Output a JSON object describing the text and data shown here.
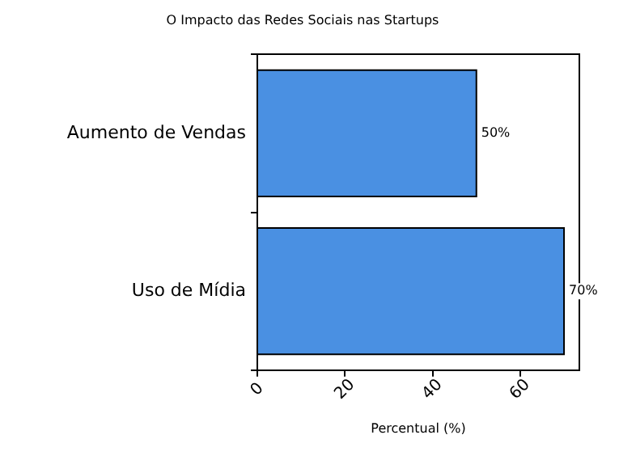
{
  "chart_data": {
    "type": "bar",
    "orientation": "horizontal",
    "title": "O Impacto das Redes Sociais nas Startups",
    "xlabel": "Percentual (%)",
    "categories": [
      "Aumento de Vendas",
      "Uso de Mídia"
    ],
    "values": [
      50,
      70
    ],
    "color": "#4a90e2",
    "value_labels": [
      "50%",
      "70%"
    ],
    "xlim": [
      0,
      73.5
    ],
    "xticks": [
      0,
      20,
      40,
      60
    ],
    "grid": false,
    "legend": false
  }
}
